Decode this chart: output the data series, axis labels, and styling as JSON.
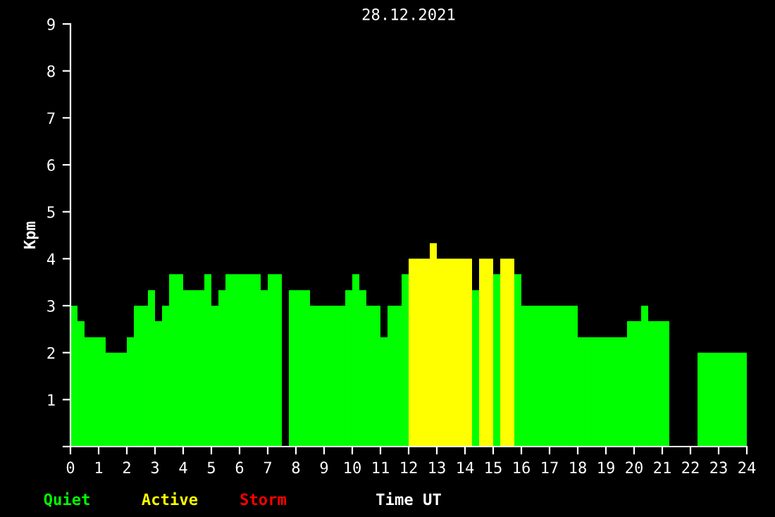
{
  "chart_data": {
    "type": "bar",
    "title": "28.12.2021",
    "xlabel": "Time UT",
    "ylabel": "Kpm",
    "x": [
      0.125,
      0.375,
      0.625,
      0.875,
      1.125,
      1.375,
      1.625,
      1.875,
      2.125,
      2.375,
      2.625,
      2.875,
      3.125,
      3.375,
      3.625,
      3.875,
      4.125,
      4.375,
      4.625,
      4.875,
      5.125,
      5.375,
      5.625,
      5.875,
      6.125,
      6.375,
      6.625,
      6.875,
      7.125,
      7.375,
      7.625,
      7.875,
      8.125,
      8.375,
      8.625,
      8.875,
      9.125,
      9.375,
      9.625,
      9.875,
      10.125,
      10.375,
      10.625,
      10.875,
      11.125,
      11.375,
      11.625,
      11.875,
      12.125,
      12.375,
      12.625,
      12.875,
      13.125,
      13.375,
      13.625,
      13.875,
      14.125,
      14.375,
      14.625,
      14.875,
      15.125,
      15.375,
      15.625,
      15.875,
      16.125,
      16.375,
      16.625,
      16.875,
      17.125,
      17.375,
      17.625,
      17.875,
      18.125,
      18.375,
      18.625,
      18.875,
      19.125,
      19.375,
      19.625,
      19.875,
      20.125,
      20.375,
      20.625,
      20.875,
      21.125,
      21.375,
      21.625,
      21.875,
      22.125,
      22.375,
      22.625,
      22.875,
      23.125,
      23.375,
      23.625,
      23.875
    ],
    "series": [
      {
        "name": "Quiet",
        "color": "#00ff00",
        "values": [
          3,
          2.67,
          2.33,
          2.33,
          2.33,
          2,
          2,
          2,
          2.33,
          3,
          3,
          3.33,
          2.67,
          3,
          3.67,
          3.67,
          3.33,
          3.33,
          3.33,
          3.67,
          3,
          3.33,
          3.67,
          3.67,
          3.67,
          3.67,
          3.67,
          3.33,
          3.67,
          3.67,
          null,
          3.33,
          3.33,
          3.33,
          3,
          3,
          3,
          3,
          3,
          3.33,
          3.67,
          3.33,
          3,
          3,
          2.33,
          3,
          3,
          3.67,
          null,
          null,
          null,
          null,
          null,
          null,
          null,
          null,
          null,
          3.33,
          null,
          null,
          3.67,
          null,
          null,
          3.67,
          3,
          3,
          3,
          3,
          3,
          3,
          3,
          3,
          2.33,
          2.33,
          2.33,
          2.33,
          2.33,
          2.33,
          2.33,
          2.67,
          2.67,
          3,
          2.67,
          2.67,
          2.67,
          null,
          null,
          null,
          null,
          2,
          2,
          2,
          2,
          2,
          2,
          2
        ]
      },
      {
        "name": "Active",
        "color": "#ffff00",
        "values": [
          null,
          null,
          null,
          null,
          null,
          null,
          null,
          null,
          null,
          null,
          null,
          null,
          null,
          null,
          null,
          null,
          null,
          null,
          null,
          null,
          null,
          null,
          null,
          null,
          null,
          null,
          null,
          null,
          null,
          null,
          null,
          null,
          null,
          null,
          null,
          null,
          null,
          null,
          null,
          null,
          null,
          null,
          null,
          null,
          null,
          null,
          null,
          null,
          4,
          4,
          4,
          4.33,
          4,
          4,
          4,
          4,
          4,
          null,
          4,
          4,
          null,
          4,
          4,
          null,
          null,
          null,
          null,
          null,
          null,
          null,
          null,
          null,
          null,
          null,
          null,
          null,
          null,
          null,
          null,
          null,
          null,
          null,
          null,
          null,
          null,
          null,
          null,
          null,
          null,
          null,
          null,
          null,
          null,
          null,
          null,
          null
        ]
      },
      {
        "name": "Storm",
        "color": "#ff0000",
        "values": [
          null,
          null,
          null,
          null,
          null,
          null,
          null,
          null,
          null,
          null,
          null,
          null,
          null,
          null,
          null,
          null,
          null,
          null,
          null,
          null,
          null,
          null,
          null,
          null,
          null,
          null,
          null,
          null,
          null,
          null,
          null,
          null,
          null,
          null,
          null,
          null,
          null,
          null,
          null,
          null,
          null,
          null,
          null,
          null,
          null,
          null,
          null,
          null,
          null,
          null,
          null,
          null,
          null,
          null,
          null,
          null,
          null,
          null,
          null,
          null,
          null,
          null,
          null,
          null,
          null,
          null,
          null,
          null,
          null,
          null,
          null,
          null,
          null,
          null,
          null,
          null,
          null,
          null,
          null,
          null,
          null,
          null,
          null,
          null,
          null,
          null,
          null,
          null,
          null,
          null,
          null,
          null,
          null,
          null,
          null,
          null
        ]
      }
    ],
    "xlim": [
      0,
      24
    ],
    "xticks": [
      0,
      1,
      2,
      3,
      4,
      5,
      6,
      7,
      8,
      9,
      10,
      11,
      12,
      13,
      14,
      15,
      16,
      17,
      18,
      19,
      20,
      21,
      22,
      23,
      24
    ],
    "ylim": [
      0,
      9
    ],
    "yticks": [
      {
        "value": 0,
        "label": null
      },
      1,
      2,
      3,
      4,
      5,
      6,
      7,
      8,
      9
    ],
    "legend": "bottom left",
    "grid": false
  }
}
